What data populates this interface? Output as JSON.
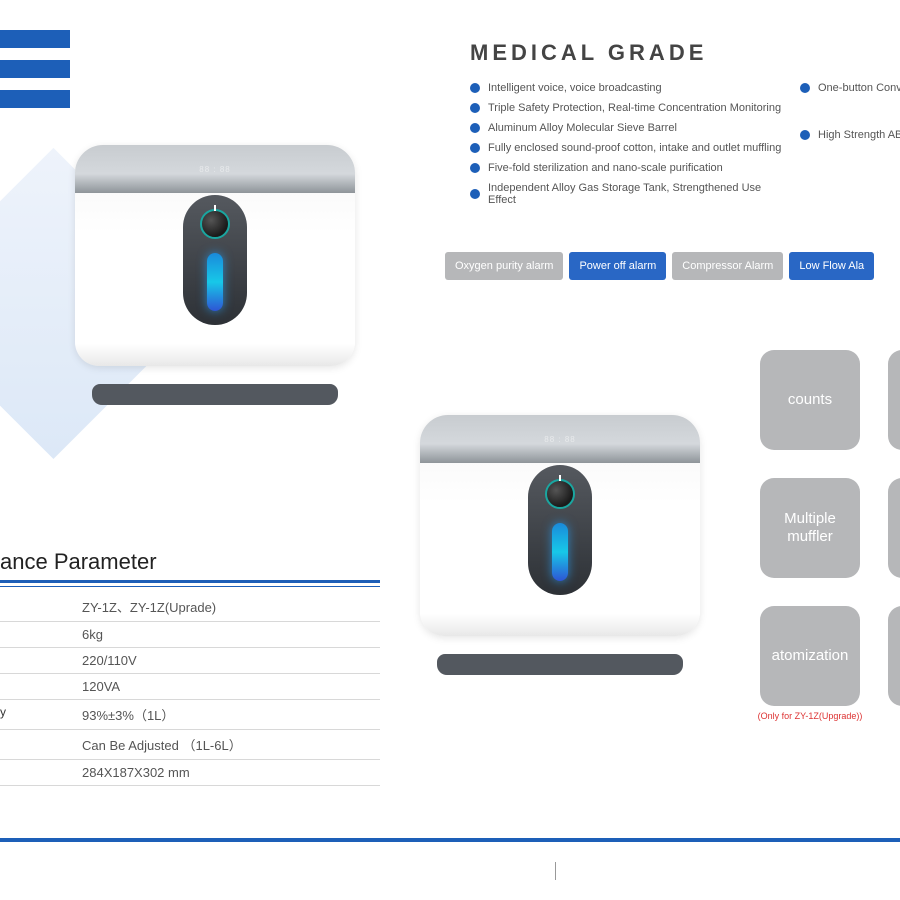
{
  "colors": {
    "brand_blue": "#1d5fb8",
    "btn_blue": "#2967c5",
    "btn_grey": "#b6b7b9"
  },
  "heading": "MEDICAL  GRADE",
  "features_left": [
    "Intelligent voice, voice broadcasting",
    "Triple Safety Protection, Real-time Concentration Monitoring",
    "Aluminum Alloy Molecular Sieve Barrel",
    "Fully enclosed sound-proof cotton, intake and outlet muffling",
    "Five-fold sterilization and nano-scale purification",
    "Independent Alloy Gas Storage Tank, Strengthened Use Effect"
  ],
  "features_right": [
    "One-button Convenie",
    "",
    "High Strength ABS Pl"
  ],
  "alarms": [
    {
      "label": "Oxygen purity alarm",
      "style": "grey"
    },
    {
      "label": "Power off alarm",
      "style": "blue"
    },
    {
      "label": "Compressor Alarm",
      "style": "grey"
    },
    {
      "label": "Low Flow Ala",
      "style": "blue"
    }
  ],
  "tiles": [
    [
      {
        "text": "counts"
      },
      {
        "text": ""
      }
    ],
    [
      {
        "text": "Multiple\nmuffler"
      },
      {
        "text": ""
      }
    ],
    [
      {
        "text": "atomization",
        "caption": "(Only for  ZY-1Z(Upgrade))"
      },
      {
        "text": ""
      }
    ]
  ],
  "param_heading": "ance Parameter",
  "params": [
    {
      "label": "",
      "value": "ZY-1Z、ZY-1Z(Uprade)"
    },
    {
      "label": "",
      "value": "6kg"
    },
    {
      "label": "",
      "value": "220/110V"
    },
    {
      "label": "",
      "value": "120VA"
    },
    {
      "label": "y",
      "value": "93%±3%（1L）"
    },
    {
      "label": "",
      "value": "Can Be Adjusted （1L-6L）"
    },
    {
      "label": "",
      "value": "284X187X302 mm"
    }
  ]
}
